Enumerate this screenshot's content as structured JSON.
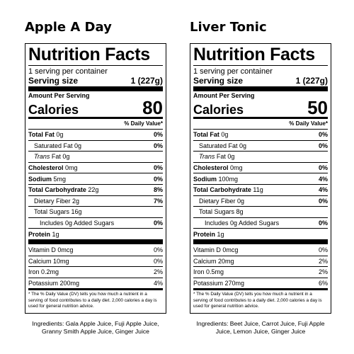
{
  "products": [
    {
      "name": "Apple A Day",
      "panel": {
        "title": "Nutrition Facts",
        "servings": "1 serving per container",
        "serving_size_label": "Serving size",
        "serving_size_value": "1 (227g)",
        "amount_per_serving": "Amount Per Serving",
        "calories_label": "Calories",
        "calories_value": "80",
        "dv_header": "% Daily Value*",
        "total_fat_label": "Total Fat",
        "total_fat_amt": "0g",
        "total_fat_pct": "0%",
        "sat_fat_label": "Saturated Fat 0g",
        "sat_fat_pct": "0%",
        "trans_label": "Trans",
        "trans_amt": "Fat 0g",
        "chol_label": "Cholesterol",
        "chol_amt": "0mg",
        "chol_pct": "0%",
        "sodium_label": "Sodium",
        "sodium_amt": "5mg",
        "sodium_pct": "0%",
        "carb_label": "Total Carbohydrate",
        "carb_amt": "22g",
        "carb_pct": "8%",
        "fiber_label": "Dietary Fiber 2g",
        "fiber_pct": "7%",
        "sugars_label": "Total Sugars 16g",
        "added_label": "Includes 0g Added Sugars",
        "added_pct": "0%",
        "protein_label": "Protein",
        "protein_amt": "1g",
        "vitd_label": "Vitamin D 0mcg",
        "vitd_pct": "0%",
        "calcium_label": "Calcium 10mg",
        "calcium_pct": "0%",
        "iron_label": "Iron 0.2mg",
        "iron_pct": "2%",
        "potassium_label": "Potassium 200mg",
        "potassium_pct": "4%",
        "footnote": "* The % Daily Value (DV) tells you how much a nutrient in a serving of food contributes to a daily diet. 2,000 calories a day is used for general nutrition advice."
      },
      "ingredients": "Ingredients: Gala Apple Juice, Fuji Apple Juice, Granny Smith Apple Juice, Ginger Juice"
    },
    {
      "name": "Liver Tonic",
      "panel": {
        "title": "Nutrition Facts",
        "servings": "1 serving per container",
        "serving_size_label": "Serving size",
        "serving_size_value": "1 (227g)",
        "amount_per_serving": "Amount Per Serving",
        "calories_label": "Calories",
        "calories_value": "50",
        "dv_header": "% Daily Value*",
        "total_fat_label": "Total Fat",
        "total_fat_amt": "0g",
        "total_fat_pct": "0%",
        "sat_fat_label": "Saturated Fat 0g",
        "sat_fat_pct": "0%",
        "trans_label": "Trans",
        "trans_amt": "Fat 0g",
        "chol_label": "Cholesterol",
        "chol_amt": "0mg",
        "chol_pct": "0%",
        "sodium_label": "Sodium",
        "sodium_amt": "100mg",
        "sodium_pct": "4%",
        "carb_label": "Total Carbohydrate",
        "carb_amt": "11g",
        "carb_pct": "4%",
        "fiber_label": "Dietary Fiber 0g",
        "fiber_pct": "0%",
        "sugars_label": "Total Sugars 8g",
        "added_label": "Includes 0g Added Sugars",
        "added_pct": "0%",
        "protein_label": "Protein",
        "protein_amt": "1g",
        "vitd_label": "Vitamin D 0mcg",
        "vitd_pct": "0%",
        "calcium_label": "Calcium 20mg",
        "calcium_pct": "2%",
        "iron_label": "Iron 0.5mg",
        "iron_pct": "2%",
        "potassium_label": "Potassium 270mg",
        "potassium_pct": "6%",
        "footnote": "* The % Daily Value (DV) tells you how much a nutrient in a serving of food contributes to a daily diet. 2,000 calories a day is used for general nutrition advice."
      },
      "ingredients": "Ingredients: Beet Juice, Carrot Juice, Fuji Apple Juice, Lemon Juice, Ginger Juice"
    }
  ]
}
